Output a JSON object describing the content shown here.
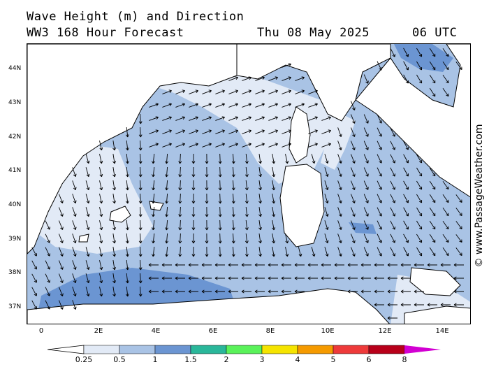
{
  "header": {
    "line1": "Wave Height (m) and Direction",
    "model": "WW3 168 Hour Forecast",
    "date": "Thu 08 May 2025",
    "time": "06 UTC"
  },
  "credit": "© www.PassageWeather.com",
  "map": {
    "lon_range": [
      -0.5,
      15.0
    ],
    "lat_range": [
      36.5,
      44.8
    ],
    "lat_labels": [
      "44N",
      "43N",
      "42N",
      "41N",
      "40N",
      "39N",
      "38N",
      "37N"
    ],
    "lat_values": [
      44,
      43,
      42,
      41,
      40,
      39,
      38,
      37
    ],
    "lon_labels": [
      "0",
      "2E",
      "4E",
      "6E",
      "8E",
      "10E",
      "12E",
      "14E"
    ],
    "lon_values": [
      0,
      2,
      4,
      6,
      8,
      10,
      12,
      14
    ],
    "colors": {
      "band_0_25": "#e2eaf6",
      "band_0_5": "#a9c3e5",
      "band_1": "#6b95d2",
      "land": "#ffffff",
      "coast": "#000000"
    }
  },
  "colorbar": {
    "labels": [
      "0.25",
      "0.5",
      "1",
      "1.5",
      "2",
      "3",
      "4",
      "5",
      "6",
      "8"
    ],
    "colors": [
      "#e2eaf6",
      "#a9c3e5",
      "#6b95d2",
      "#2ab79a",
      "#5af25a",
      "#f5e400",
      "#f59a00",
      "#ee3a3a",
      "#b8001a",
      "#d200d2"
    ]
  }
}
